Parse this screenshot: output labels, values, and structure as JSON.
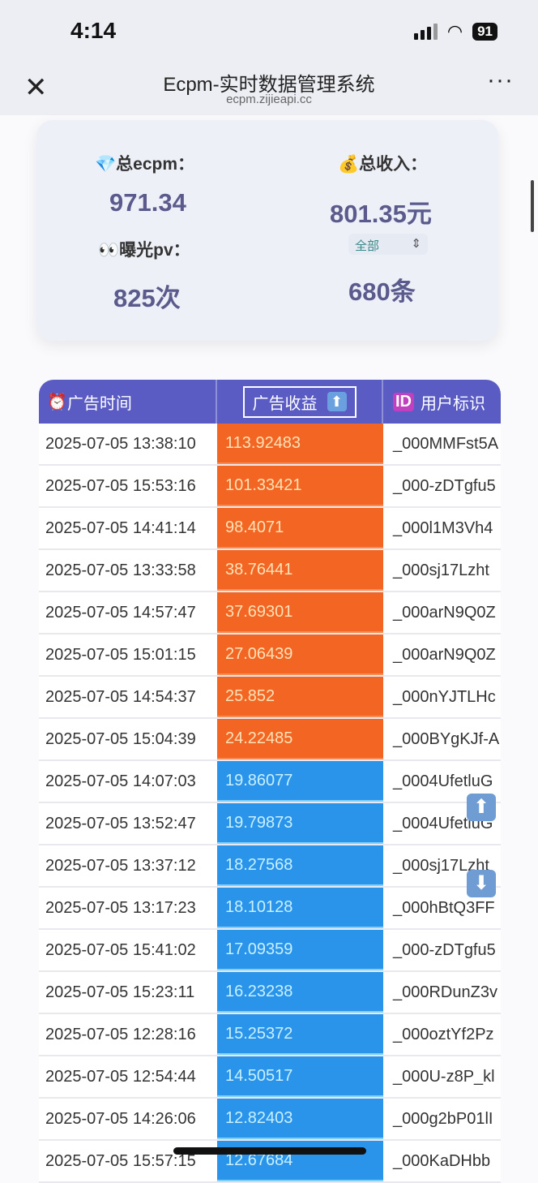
{
  "status": {
    "time": "4:14",
    "battery": "91"
  },
  "nav": {
    "title": "Ecpm-实时数据管理系统",
    "subtitle": "ecpm.zijieapi.cc"
  },
  "summary": {
    "ecpm_label": "总ecpm：",
    "ecpm_value": "971.34",
    "income_label": "总收入：",
    "income_value": "801.35元",
    "pv_label": "曝光pv：",
    "pv_value": "825次",
    "filter_value": "全部",
    "count_value": "680条"
  },
  "table": {
    "headers": [
      "广告时间",
      "广告收益",
      "用户标识"
    ],
    "rows": [
      {
        "time": "2025-07-05 13:38:10",
        "revenue": "113.92483",
        "user": "_000MMFst5A"
      },
      {
        "time": "2025-07-05 15:53:16",
        "revenue": "101.33421",
        "user": "_000-zDTgfu5"
      },
      {
        "time": "2025-07-05 14:41:14",
        "revenue": "98.4071",
        "user": "_000l1M3Vh4"
      },
      {
        "time": "2025-07-05 13:33:58",
        "revenue": "38.76441",
        "user": "_000sj17Lzht"
      },
      {
        "time": "2025-07-05 14:57:47",
        "revenue": "37.69301",
        "user": "_000arN9Q0Z"
      },
      {
        "time": "2025-07-05 15:01:15",
        "revenue": "27.06439",
        "user": "_000arN9Q0Z"
      },
      {
        "time": "2025-07-05 14:54:37",
        "revenue": "25.852",
        "user": "_000nYJTLHc"
      },
      {
        "time": "2025-07-05 15:04:39",
        "revenue": "24.22485",
        "user": "_000BYgKJf-A"
      },
      {
        "time": "2025-07-05 14:07:03",
        "revenue": "19.86077",
        "user": "_0004UfetluG"
      },
      {
        "time": "2025-07-05 13:52:47",
        "revenue": "19.79873",
        "user": "_0004UfetluG"
      },
      {
        "time": "2025-07-05 13:37:12",
        "revenue": "18.27568",
        "user": "_000sj17Lzht"
      },
      {
        "time": "2025-07-05 13:17:23",
        "revenue": "18.10128",
        "user": "_000hBtQ3FF"
      },
      {
        "time": "2025-07-05 15:41:02",
        "revenue": "17.09359",
        "user": "_000-zDTgfu5"
      },
      {
        "time": "2025-07-05 15:23:11",
        "revenue": "16.23238",
        "user": "_000RDunZ3v"
      },
      {
        "time": "2025-07-05 12:28:16",
        "revenue": "15.25372",
        "user": "_000oztYf2Pz"
      },
      {
        "time": "2025-07-05 12:54:44",
        "revenue": "14.50517",
        "user": "_000U-z8P_kl"
      },
      {
        "time": "2025-07-05 14:26:06",
        "revenue": "12.82403",
        "user": "_000g2bP01lI"
      },
      {
        "time": "2025-07-05 15:57:15",
        "revenue": "12.67684",
        "user": "_000KaDHbb"
      }
    ],
    "high_threshold_color": "#f26522",
    "normal_color": "#2a94ea"
  }
}
